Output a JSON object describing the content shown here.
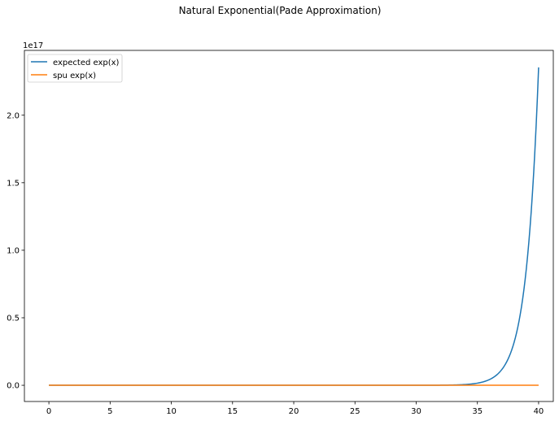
{
  "chart_data": {
    "type": "line",
    "title": "Natural Exponential(Pade Approximation)",
    "xlabel": "",
    "ylabel": "",
    "xlim": [
      -2,
      41.2
    ],
    "ylim": [
      -1.2e+16,
      2.48e+17
    ],
    "x_ticks": [
      0,
      5,
      10,
      15,
      20,
      25,
      30,
      35,
      40
    ],
    "x_tick_labels": [
      "0",
      "5",
      "10",
      "15",
      "20",
      "25",
      "30",
      "35",
      "40"
    ],
    "y_ticks": [
      0,
      5e+16,
      1e+17,
      1.5e+17,
      2e+17
    ],
    "y_tick_labels": [
      "0.0",
      "0.5",
      "1.0",
      "1.5",
      "2.0"
    ],
    "y_offset_label": "1e17",
    "grid": false,
    "legend_location": "upper-left",
    "series": [
      {
        "name": "expected exp(x)",
        "color": "#1f77b4",
        "function": "exp",
        "x_range": [
          0,
          40
        ]
      },
      {
        "name": "spu exp(x)",
        "color": "#ff7f0e",
        "function": "near-zero",
        "x_range": [
          0,
          40
        ]
      }
    ]
  }
}
